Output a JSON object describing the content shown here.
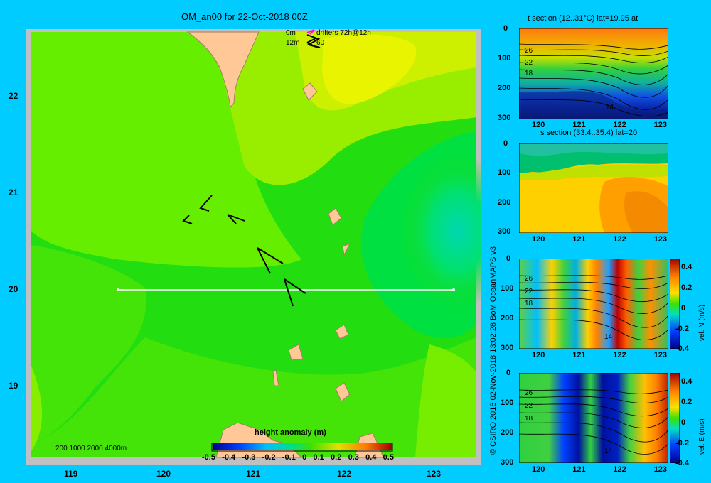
{
  "header": {
    "title": "OM_an00 for 22-Oct-2018 00Z"
  },
  "legend": {
    "drift_0m": "0m",
    "drift_12m": "12m",
    "drifters": "drifters 72h@12h",
    "drift_sub": "60"
  },
  "map": {
    "lat_ticks": [
      "22",
      "21",
      "20",
      "19"
    ],
    "lon_ticks": [
      "119",
      "120",
      "121",
      "122",
      "123"
    ],
    "bathy_label": "200  1000  2000  4000m",
    "colorbar_title": "height anomaly (m)",
    "colorbar_ticks": [
      "-0.5",
      "-0.4",
      "-0.3",
      "-0.2",
      "-0.1",
      "0",
      "0.1",
      "0.2",
      "0.3",
      "0.4",
      "0.5"
    ],
    "section_lat": 20,
    "section_lon": [
      119.5,
      123.2
    ]
  },
  "panels": {
    "t_title": "t section (12..31°C) lat=19.95 at",
    "s_title": "s section (33.4..35.4) lat=20",
    "depth_ticks": [
      "0",
      "100",
      "200",
      "300"
    ],
    "lon_ticks": [
      "120",
      "121",
      "122",
      "123"
    ],
    "contour_labels": [
      "26",
      "22",
      "18",
      "14"
    ],
    "vn_label": "vel. N (m/s)",
    "ve_label": "vel. E (m/s)",
    "vel_ticks": [
      "0.4",
      "0.2",
      "0",
      "-0.2",
      "-0.4"
    ]
  },
  "credit": "© CSIRO 2018   02-Nov-2018 13:02:28 BoM OceanMAPS v3",
  "colors": {
    "background": "#00ccff",
    "land": "#ffc896",
    "frame": "#c0c0c0"
  },
  "chart_data": [
    {
      "type": "heatmap",
      "title": "OM_an00 for 22-Oct-2018 00Z",
      "variable": "height anomaly (m)",
      "xlim": [
        118.5,
        123.5
      ],
      "ylim": [
        18.3,
        22.7
      ],
      "clim": [
        -0.5,
        0.5
      ],
      "section_lat": 20
    },
    {
      "type": "heatmap",
      "title": "t section (12..31°C) lat=19.95 at",
      "xlim": [
        119.5,
        123.2
      ],
      "ylim": [
        300,
        0
      ],
      "contours": [
        26,
        22,
        18,
        14
      ]
    },
    {
      "type": "heatmap",
      "title": "s section (33.4..35.4) lat=20",
      "xlim": [
        119.5,
        123.2
      ],
      "ylim": [
        300,
        0
      ]
    },
    {
      "type": "heatmap",
      "variable": "vel. N (m/s)",
      "xlim": [
        119.5,
        123.2
      ],
      "ylim": [
        300,
        0
      ],
      "clim": [
        -0.4,
        0.4
      ],
      "contours": [
        26,
        22,
        18,
        14
      ]
    },
    {
      "type": "heatmap",
      "variable": "vel. E (m/s)",
      "xlim": [
        119.5,
        123.2
      ],
      "ylim": [
        300,
        0
      ],
      "clim": [
        -0.4,
        0.4
      ],
      "contours": [
        26,
        22,
        18,
        14
      ]
    }
  ]
}
